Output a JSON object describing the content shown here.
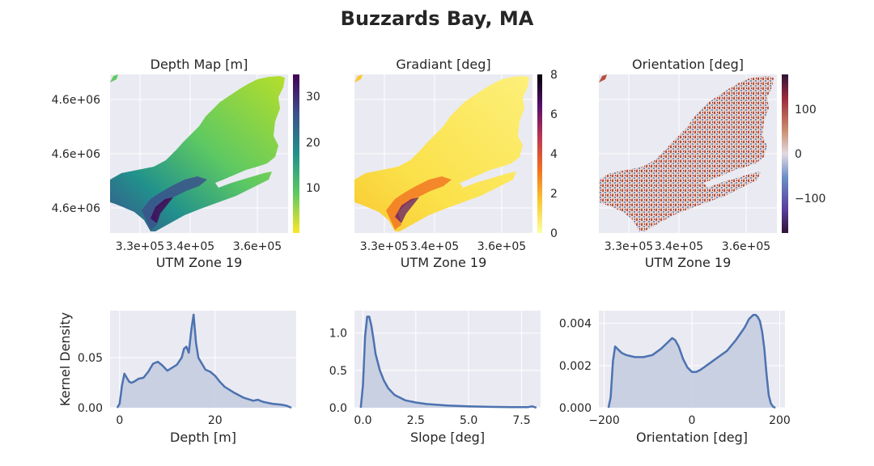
{
  "figure_title": "Buzzards Bay, MA",
  "colors": {
    "axes_bg": "#eaeaf2",
    "grid": "#ffffff",
    "kde_line": "#4c72b0",
    "kde_fill": "#c5cde0",
    "land": "#ffffff",
    "text": "#262626"
  },
  "chart_data": [
    {
      "type": "heatmap",
      "title": "Depth Map [m]",
      "xlabel": "UTM Zone 19",
      "xticks": [
        "3.3e+05",
        "3.4e+05",
        "3.6e+05"
      ],
      "yticks": [
        "4.6e+06",
        "4.6e+06",
        "4.6e+06"
      ],
      "colormap": "viridis_r",
      "colorbar_ticks": [
        "30",
        "20",
        "10"
      ],
      "colorbar_range": [
        0,
        35
      ]
    },
    {
      "type": "heatmap",
      "title": "Gradiant [deg]",
      "xlabel": "UTM Zone 19",
      "xticks": [
        "3.3e+05",
        "3.4e+05",
        "3.6e+05"
      ],
      "colormap": "inferno_r",
      "colorbar_ticks": [
        "8",
        "6",
        "4",
        "2",
        "0"
      ],
      "colorbar_range": [
        0,
        8
      ]
    },
    {
      "type": "heatmap",
      "title": "Orientation [deg]",
      "xlabel": "UTM Zone 19",
      "xticks": [
        "3.3e+05",
        "3.4e+05",
        "3.6e+05"
      ],
      "colormap": "twilight_shifted",
      "colorbar_ticks": [
        "100",
        "0",
        "−100"
      ],
      "colorbar_range": [
        -180,
        180
      ]
    },
    {
      "type": "area",
      "xlabel": "Depth [m]",
      "ylabel": "Kernel Density",
      "xlim": [
        -2,
        37
      ],
      "ylim": [
        0,
        0.097
      ],
      "xticks": [
        "0",
        "20"
      ],
      "yticks": [
        "0.00",
        "0.05"
      ],
      "x": [
        -0.5,
        0,
        0.5,
        1,
        1.5,
        2,
        2.5,
        3,
        4,
        5,
        6,
        7,
        8,
        9,
        10,
        11,
        12,
        13,
        13.5,
        14,
        14.5,
        15,
        15.5,
        16,
        16.5,
        17,
        18,
        19,
        20,
        21,
        22,
        24,
        26,
        28,
        29,
        30,
        32,
        34,
        35,
        36
      ],
      "y": [
        0,
        0.004,
        0.022,
        0.034,
        0.03,
        0.026,
        0.025,
        0.026,
        0.029,
        0.03,
        0.036,
        0.044,
        0.046,
        0.042,
        0.037,
        0.04,
        0.043,
        0.05,
        0.059,
        0.061,
        0.055,
        0.077,
        0.093,
        0.065,
        0.05,
        0.046,
        0.038,
        0.036,
        0.032,
        0.026,
        0.021,
        0.015,
        0.01,
        0.007,
        0.008,
        0.006,
        0.004,
        0.003,
        0.002,
        0
      ]
    },
    {
      "type": "area",
      "xlabel": "Slope [deg]",
      "xlim": [
        -0.4,
        8.4
      ],
      "ylim": [
        0,
        1.3
      ],
      "xticks": [
        "0.0",
        "2.5",
        "5.0",
        "7.5"
      ],
      "yticks": [
        "0.0",
        "0.5",
        "1.0"
      ],
      "x": [
        -0.1,
        0,
        0.1,
        0.2,
        0.3,
        0.4,
        0.5,
        0.6,
        0.8,
        1.0,
        1.2,
        1.5,
        2.0,
        2.5,
        3.0,
        4.0,
        5.0,
        6.0,
        7.0,
        7.8,
        8.0,
        8.2
      ],
      "y": [
        0,
        0.3,
        0.95,
        1.22,
        1.22,
        1.1,
        0.92,
        0.72,
        0.5,
        0.36,
        0.26,
        0.17,
        0.1,
        0.07,
        0.05,
        0.03,
        0.02,
        0.012,
        0.008,
        0.008,
        0.02,
        0
      ]
    },
    {
      "type": "area",
      "xlabel": "Orientation [deg]",
      "xlim": [
        -212,
        212
      ],
      "ylim": [
        0,
        0.0046
      ],
      "xticks": [
        "−200",
        "0",
        "200"
      ],
      "yticks": [
        "0.000",
        "0.002",
        "0.004"
      ],
      "x": [
        -190,
        -185,
        -180,
        -175,
        -170,
        -160,
        -150,
        -130,
        -110,
        -90,
        -70,
        -55,
        -45,
        -38,
        -30,
        -20,
        -10,
        0,
        10,
        20,
        40,
        60,
        80,
        100,
        120,
        130,
        140,
        145,
        150,
        155,
        160,
        165,
        170,
        175,
        180,
        185,
        190
      ],
      "y": [
        0,
        0.0005,
        0.0022,
        0.0029,
        0.0028,
        0.0026,
        0.0025,
        0.0024,
        0.0024,
        0.0025,
        0.0028,
        0.0031,
        0.0033,
        0.0032,
        0.0029,
        0.0023,
        0.0019,
        0.0017,
        0.0017,
        0.0018,
        0.0021,
        0.0024,
        0.0027,
        0.0032,
        0.0038,
        0.0042,
        0.0044,
        0.0044,
        0.0043,
        0.0041,
        0.0036,
        0.0028,
        0.0016,
        0.0006,
        0.0002,
        5e-05,
        0
      ]
    }
  ]
}
